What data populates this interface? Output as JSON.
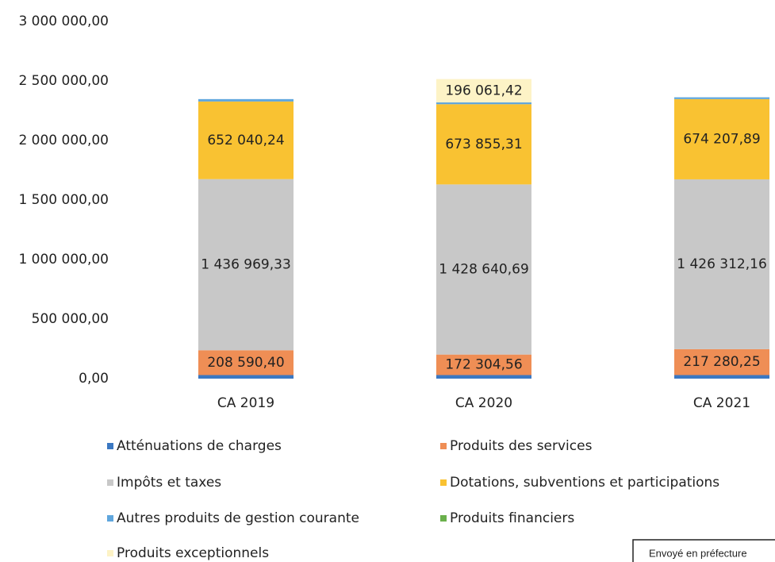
{
  "chart_data": {
    "type": "stacked_bar",
    "categories": [
      "CA 2019",
      "CA 2020",
      "CA 2021"
    ],
    "series": [
      {
        "name": "Atténuations de charges",
        "color": "#3b78c2",
        "values": [
          30000,
          30000,
          30000
        ],
        "value_labels": [
          null,
          null,
          null
        ]
      },
      {
        "name": "Produits des services",
        "color": "#ef8e55",
        "values": [
          208590.4,
          172304.56,
          217280.25
        ],
        "value_labels": [
          "208 590,40",
          "172 304,56",
          "217 280,25"
        ]
      },
      {
        "name": "Impôts et taxes",
        "color": "#c8c8c8",
        "values": [
          1436969.33,
          1428640.69,
          1426312.16
        ],
        "value_labels": [
          "1 436 969,33",
          "1 428 640,69",
          "1 426 312,16"
        ]
      },
      {
        "name": "Dotations, subventions et participations",
        "color": "#f9c232",
        "values": [
          652040.24,
          673855.31,
          674207.89
        ],
        "value_labels": [
          "652 040,24",
          "673 855,31",
          "674 207,89"
        ]
      },
      {
        "name": "Autres produits de gestion courante",
        "color": "#5fa6dd",
        "values": [
          20000,
          15000,
          15000
        ],
        "value_labels": [
          null,
          null,
          null
        ]
      },
      {
        "name": "Produits financiers",
        "color": "#6ab04c",
        "values": [
          0,
          0,
          0
        ],
        "value_labels": [
          null,
          null,
          null
        ]
      },
      {
        "name": "Produits exceptionnels",
        "color": "#fdf3c6",
        "values": [
          0,
          196061.42,
          0
        ],
        "value_labels": [
          null,
          "196 061,42",
          null
        ]
      }
    ],
    "ylim": [
      0,
      3000000
    ],
    "yticks": [
      {
        "value": 0,
        "label": "0,00"
      },
      {
        "value": 500000,
        "label": "500 000,00"
      },
      {
        "value": 1000000,
        "label": "1 000 000,00"
      },
      {
        "value": 1500000,
        "label": "1 500 000,00"
      },
      {
        "value": 2000000,
        "label": "2 000 000,00"
      },
      {
        "value": 2500000,
        "label": "2 500 000,00"
      },
      {
        "value": 3000000,
        "label": "3 000 000,00"
      }
    ],
    "grid": false
  },
  "stamp": "Envoyé en préfecture"
}
